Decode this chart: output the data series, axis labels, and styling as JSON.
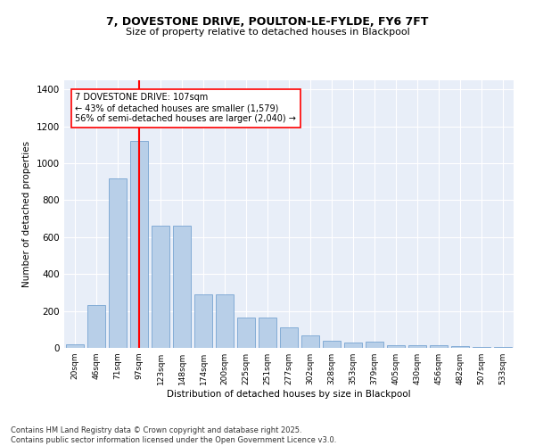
{
  "title": "7, DOVESTONE DRIVE, POULTON-LE-FYLDE, FY6 7FT",
  "subtitle": "Size of property relative to detached houses in Blackpool",
  "xlabel": "Distribution of detached houses by size in Blackpool",
  "ylabel": "Number of detached properties",
  "bar_color": "#b8cfe8",
  "bar_edge_color": "#6699cc",
  "background_color": "#e8eef8",
  "grid_color": "#ffffff",
  "vline_color": "red",
  "annotation_text": "7 DOVESTONE DRIVE: 107sqm\n← 43% of detached houses are smaller (1,579)\n56% of semi-detached houses are larger (2,040) →",
  "annotation_fontsize": 7,
  "footnote": "Contains HM Land Registry data © Crown copyright and database right 2025.\nContains public sector information licensed under the Open Government Licence v3.0.",
  "categories": [
    "20sqm",
    "46sqm",
    "71sqm",
    "97sqm",
    "123sqm",
    "148sqm",
    "174sqm",
    "200sqm",
    "225sqm",
    "251sqm",
    "277sqm",
    "302sqm",
    "328sqm",
    "353sqm",
    "379sqm",
    "405sqm",
    "430sqm",
    "456sqm",
    "482sqm",
    "507sqm",
    "533sqm"
  ],
  "values": [
    20,
    230,
    920,
    1120,
    660,
    660,
    290,
    290,
    165,
    165,
    110,
    70,
    40,
    30,
    35,
    15,
    15,
    15,
    10,
    5,
    5
  ],
  "ylim": [
    0,
    1450
  ],
  "yticks": [
    0,
    200,
    400,
    600,
    800,
    1000,
    1200,
    1400
  ],
  "vline_bar_index": 3.5,
  "fig_width": 6.0,
  "fig_height": 5.0,
  "dpi": 100
}
